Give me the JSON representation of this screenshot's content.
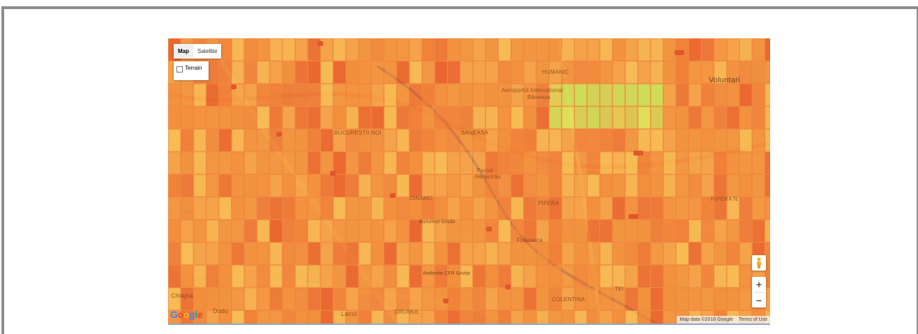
{
  "map_controls": {
    "map_label": "Map",
    "satellite_label": "Satellite",
    "terrain_label": "Terrain",
    "zoom_in": "+",
    "zoom_out": "−"
  },
  "attribution": {
    "map_data": "Map data ©2016 Google",
    "terms": "Terms of Use",
    "logo_letters": [
      "G",
      "o",
      "o",
      "g",
      "l",
      "e"
    ]
  },
  "place_labels": {
    "voluntari": "Voluntari",
    "humanic": "HUMANIC",
    "airport_line1": "Aeroportul Internațional",
    "airport_line2": "Băneasa",
    "bucurestii_noi": "BUCUREȘTII NOI",
    "baneasa": "BĂNEASA",
    "parcul_line1": "Parcul",
    "parcul_line2": "Herăstrău",
    "pipera": "PIPERA",
    "pipera_n": "PIPERA N",
    "dinamo": "DINAMO",
    "chiajna": "Chiajna",
    "dudu": "Dudu",
    "drumul_taberei": "DRUMUL",
    "lacul": "Lacul",
    "colentina": "COLENTINA",
    "tei": "TEI",
    "floreasca": "Floreasca",
    "atelierele": "Atelierele CFR Grivița",
    "bucuresti_grivita": "București Grivița"
  },
  "legend_colors": {
    "background": "#f3a24d",
    "high": "#e85b2a",
    "mid": "#f28c3a",
    "low": "#f8c156",
    "cool": "#c6e85a"
  }
}
